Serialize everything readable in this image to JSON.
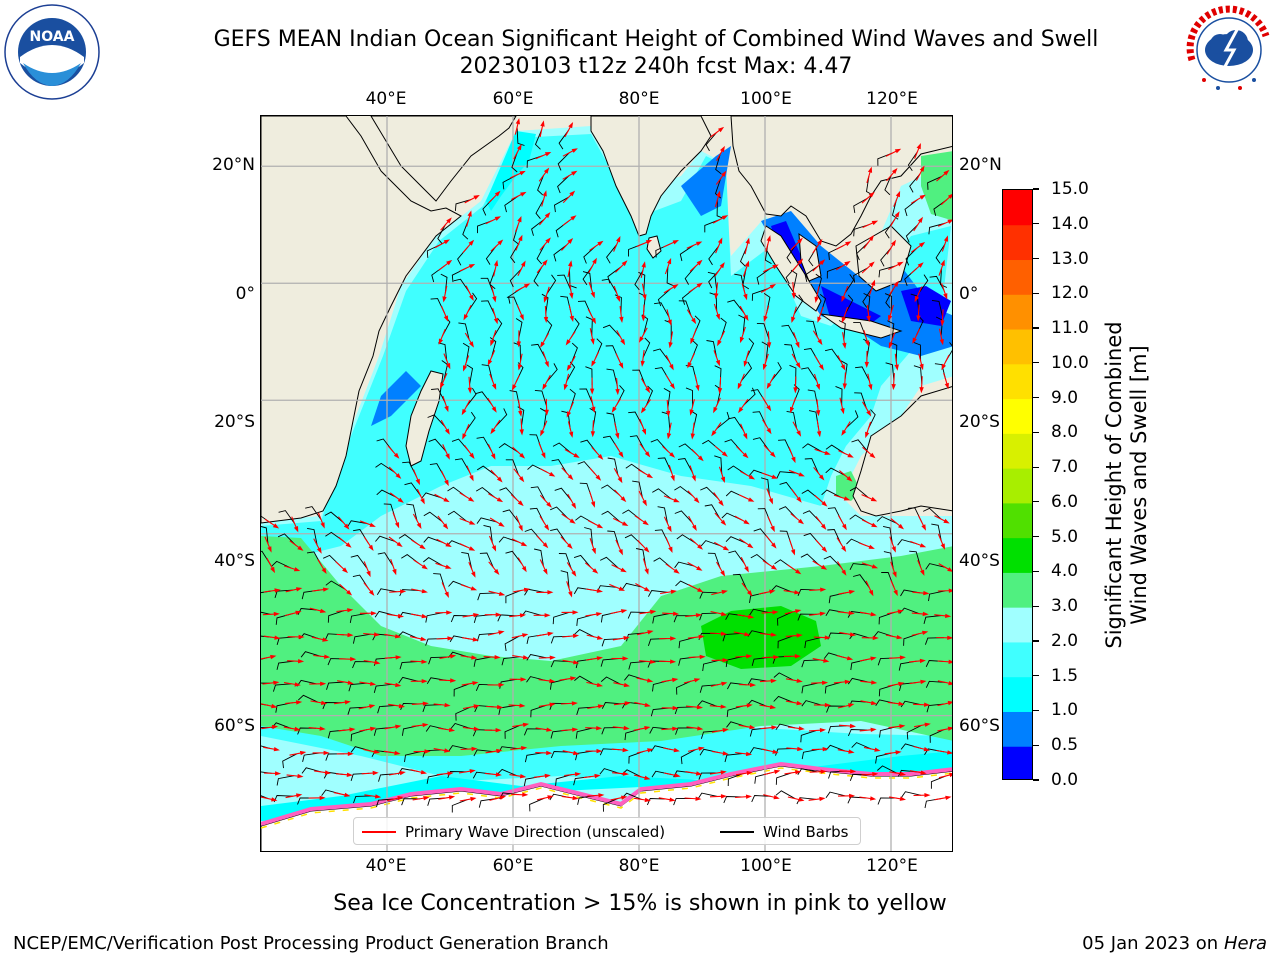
{
  "header": {
    "title_line1": "GEFS MEAN Indian Ocean Significant Height of Combined Wind Waves and Swell",
    "title_line2": "20230103 t12z 240h fcst   Max: 4.47"
  },
  "logos": {
    "left": {
      "name": "noaa-logo",
      "text": "NOAA",
      "ring_text": "NATIONAL OCEANIC AND ATMOSPHERIC ADMINISTRATION · U.S. DEPARTMENT OF COMMERCE"
    },
    "right": {
      "name": "nws-logo",
      "ring_text": "NATIONAL WEATHER SERVICE"
    }
  },
  "map": {
    "lon_ticks_top": [
      "40°E",
      "60°E",
      "80°E",
      "100°E",
      "120°E"
    ],
    "lon_ticks_bottom": [
      "40°E",
      "60°E",
      "80°E",
      "100°E",
      "120°E"
    ],
    "lat_ticks_left": [
      "20°N",
      "0°",
      "20°S",
      "40°S",
      "60°S"
    ],
    "lat_ticks_right": [
      "20°N",
      "0°",
      "20°S",
      "40°S",
      "60°S"
    ],
    "lon_values": [
      40,
      60,
      80,
      100,
      120
    ],
    "lat_values": [
      20,
      0,
      -20,
      -40,
      -60
    ],
    "extent": {
      "lon": [
        20,
        130
      ],
      "lat": [
        -70,
        28
      ]
    },
    "colors": {
      "land": "#efedde",
      "coast": "#000000",
      "grid": "#b0b0b0",
      "wave_arrow": "#ff0000",
      "wind_barb": "#000000"
    }
  },
  "colorbar": {
    "ticks": [
      "0.0",
      "0.5",
      "1.0",
      "1.5",
      "2.0",
      "3.0",
      "4.0",
      "5.0",
      "6.0",
      "7.0",
      "8.0",
      "9.0",
      "10.0",
      "11.0",
      "12.0",
      "13.0",
      "14.0",
      "15.0"
    ],
    "colors": [
      "#0000ff",
      "#0080ff",
      "#00ffff",
      "#40ffff",
      "#a0ffff",
      "#50f080",
      "#00e000",
      "#50e000",
      "#a8ee00",
      "#d8f000",
      "#ffff00",
      "#ffe000",
      "#ffc000",
      "#ff9000",
      "#ff6000",
      "#ff3000",
      "#ff0000"
    ],
    "label_line1": "Significant Height of Combined",
    "label_line2": "Wind Waves and Swell [m]"
  },
  "legend": {
    "wave_label": "Primary Wave Direction (unscaled)",
    "barb_label": "Wind Barbs"
  },
  "footer": {
    "note": "Sea Ice Concentration > 15% is shown in pink to yellow",
    "branch": "NCEP/EMC/Verification Post Processing Product Generation Branch",
    "date": "05 Jan 2023 on",
    "host": "Hera"
  }
}
